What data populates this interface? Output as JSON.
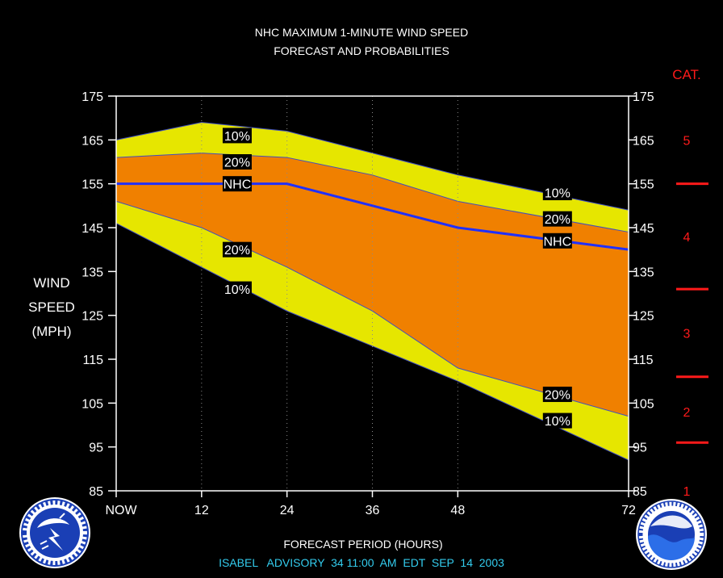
{
  "chart_data": {
    "type": "area",
    "title": "NHC MAXIMUM 1-MINUTE WIND SPEED",
    "subtitle": "FORECAST AND PROBABILITIES",
    "ylabel": [
      "WIND",
      "SPEED",
      "(MPH)"
    ],
    "xlabel": "FORECAST PERIOD (HOURS)",
    "ylim": [
      85,
      175
    ],
    "xlim": [
      0,
      72
    ],
    "y_ticks": [
      85,
      95,
      105,
      115,
      125,
      135,
      145,
      155,
      165,
      175
    ],
    "x_ticks": [
      {
        "x": 0,
        "label": "NOW"
      },
      {
        "x": 12,
        "label": "12"
      },
      {
        "x": 24,
        "label": "24"
      },
      {
        "x": 36,
        "label": "36"
      },
      {
        "x": 48,
        "label": "48"
      },
      {
        "x": 72,
        "label": "72"
      }
    ],
    "x": [
      0,
      12,
      24,
      36,
      48,
      72
    ],
    "series": [
      {
        "name": "10%",
        "role": "upper",
        "values": [
          165,
          169,
          167,
          162,
          157,
          149
        ]
      },
      {
        "name": "20%",
        "role": "upper",
        "values": [
          161,
          162,
          161,
          157,
          151,
          144
        ]
      },
      {
        "name": "NHC",
        "role": "forecast",
        "values": [
          155,
          155,
          155,
          150,
          145,
          140
        ]
      },
      {
        "name": "20%",
        "role": "lower",
        "values": [
          151,
          145,
          136,
          126,
          113,
          102
        ]
      },
      {
        "name": "10%",
        "role": "lower",
        "values": [
          146,
          136,
          126,
          118,
          110,
          92
        ]
      }
    ],
    "line_labels": [
      {
        "text": "10%",
        "x": 17,
        "y": 166
      },
      {
        "text": "20%",
        "x": 17,
        "y": 160
      },
      {
        "text": "NHC",
        "x": 17,
        "y": 155
      },
      {
        "text": "20%",
        "x": 17,
        "y": 140
      },
      {
        "text": "10%",
        "x": 17,
        "y": 131
      },
      {
        "text": "10%",
        "x": 62,
        "y": 153
      },
      {
        "text": "20%",
        "x": 62,
        "y": 147
      },
      {
        "text": "NHC",
        "x": 62,
        "y": 142
      },
      {
        "text": "20%",
        "x": 62,
        "y": 107
      },
      {
        "text": "10%",
        "x": 62,
        "y": 101
      }
    ],
    "category_label": "CAT.",
    "categories_scale": [
      {
        "label": "5",
        "y": 165
      },
      {
        "label": "4",
        "y": 143
      },
      {
        "label": "3",
        "y": 121
      },
      {
        "label": "2",
        "y": 103
      },
      {
        "label": "1",
        "y": 85
      }
    ],
    "category_boundaries": [
      155,
      131,
      111,
      96
    ],
    "colors": {
      "band_10": "#e6e600",
      "band_20": "#f08000",
      "forecast_line": "#2030ff",
      "category": "#ff1a1a",
      "footer": "#33ccee",
      "grid": "#888888"
    }
  },
  "footer": {
    "advisory": "ISABEL   ADVISORY  34 11:00  AM  EDT  SEP  14  2003"
  },
  "logos": {
    "left": "national-weather-service-seal",
    "right": "noaa-seal"
  }
}
